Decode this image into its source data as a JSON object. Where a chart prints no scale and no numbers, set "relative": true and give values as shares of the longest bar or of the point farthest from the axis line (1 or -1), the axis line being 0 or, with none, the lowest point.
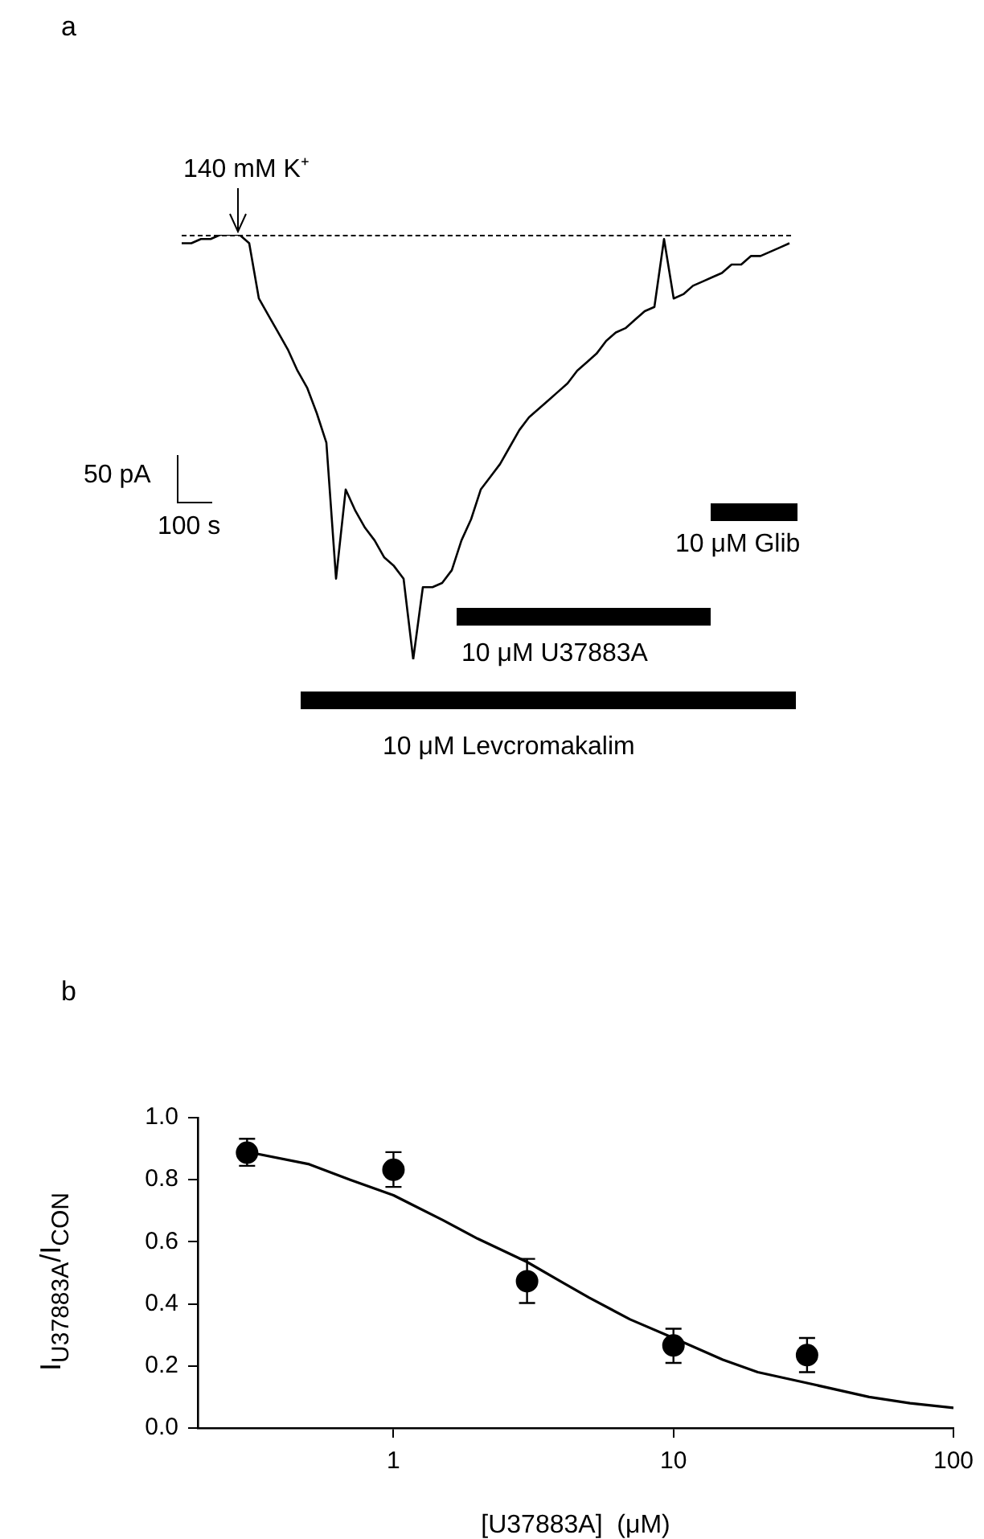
{
  "chart_data": [
    {
      "type": "line",
      "title": "a",
      "relative": true,
      "color": "#000000",
      "tick_labels": false,
      "categories": [
        null,
        null,
        null,
        null,
        null,
        null,
        null,
        null,
        null,
        null,
        null,
        null,
        null,
        null,
        null,
        null,
        null,
        null,
        null,
        null,
        null,
        null,
        null,
        null,
        null,
        null,
        null,
        null,
        null,
        null,
        null,
        null,
        null,
        null,
        null,
        null,
        null,
        null,
        null,
        null,
        null,
        null,
        null,
        null,
        null,
        null,
        null,
        null,
        null,
        null,
        null,
        null,
        null,
        null,
        null,
        null,
        null,
        null,
        null,
        null,
        null,
        null,
        null,
        null
      ],
      "values": [
        0.98,
        0.98,
        0.99,
        0.99,
        1.0,
        1.0,
        1.0,
        0.98,
        0.85,
        0.81,
        0.77,
        0.73,
        0.68,
        0.64,
        0.58,
        0.51,
        0.19,
        0.4,
        0.35,
        0.31,
        0.28,
        0.24,
        0.22,
        0.19,
        0,
        0.17,
        0.17,
        0.18,
        0.21,
        0.28,
        0.33,
        0.4,
        0.43,
        0.46,
        0.5,
        0.54,
        0.57,
        0.59,
        0.61,
        0.63,
        0.65,
        0.68,
        0.7,
        0.72,
        0.75,
        0.77,
        0.78,
        0.8,
        0.82,
        0.83,
        0.99,
        0.85,
        0.86,
        0.88,
        0.89,
        0.9,
        0.91,
        0.93,
        0.93,
        0.95,
        0.95,
        0.96,
        0.97,
        0.98
      ],
      "annotations": [
        "50 pA",
        "100 s",
        "140 mM K⁺",
        "10 μM Glib",
        "10 μM U37883A",
        "10 μM Levcromakalim"
      ]
    },
    {
      "type": "scatter",
      "title": "b",
      "xlabel": "[U37883A]  (μM)",
      "ylabel": "I$_{U37883A}$/I$_{CON}$",
      "log": "x",
      "xlim": [
        0.2,
        100
      ],
      "xticks": [
        1,
        10,
        100
      ],
      "ylim": [
        0,
        1
      ],
      "yticks": [
        {
          "value": 0,
          "label": "0.0"
        },
        0.2,
        0.4,
        0.6,
        0.8,
        {
          "value": 1,
          "label": "1.0"
        }
      ],
      "series": [
        {
          "marker": "circle",
          "color": "#000000",
          "x": [
            0.3,
            1,
            3,
            10,
            30
          ],
          "values": [
            0.887,
            0.832,
            0.473,
            0.266,
            0.235
          ],
          "errors": [
            [
              0.845,
              0.932
            ],
            [
              0.777,
              0.889
            ],
            [
              0.403,
              0.545
            ],
            [
              0.21,
              0.32
            ],
            [
              0.18,
              0.29
            ]
          ]
        },
        {
          "type": "line",
          "marker": "none",
          "color": "#000000",
          "x": [
            0.3,
            0.5,
            0.7,
            1,
            1.5,
            2,
            3,
            4,
            5,
            7,
            10,
            15,
            20,
            30,
            50,
            70,
            100
          ],
          "values": [
            0.89,
            0.85,
            0.8,
            0.75,
            0.67,
            0.61,
            0.535,
            0.47,
            0.42,
            0.35,
            0.29,
            0.22,
            0.18,
            0.145,
            0.1,
            0.08,
            0.065
          ]
        }
      ]
    }
  ]
}
